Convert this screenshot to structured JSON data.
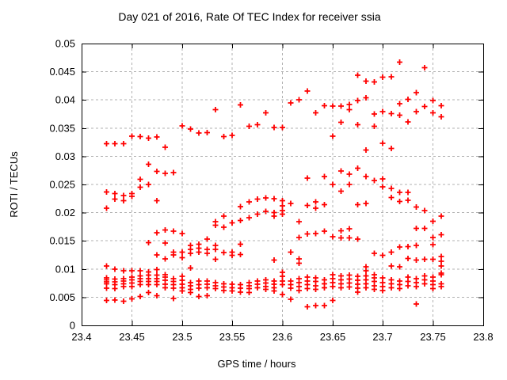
{
  "title": "Day 021 of 2016, Rate Of TEC Index for receiver ssia",
  "colors": {
    "background": "#ffffff",
    "marker": "#ff0000",
    "grid": "#b0b0b0",
    "border": "#000000",
    "text": "#000000"
  },
  "chart_data": {
    "type": "scatter",
    "title": "Day 021 of 2016, Rate Of TEC Index for receiver ssia",
    "xlabel": "GPS time / hours",
    "ylabel": "ROTI / TECUs",
    "xlim": [
      23.4,
      23.8
    ],
    "ylim": [
      0,
      0.05
    ],
    "xticks": [
      23.4,
      23.45,
      23.5,
      23.55,
      23.6,
      23.65,
      23.7,
      23.75,
      23.8
    ],
    "xtick_labels": [
      "23.4",
      "23.45",
      "23.5",
      "23.55",
      "23.6",
      "23.65",
      "23.7",
      "23.75",
      "23.8"
    ],
    "yticks": [
      0,
      0.005,
      0.01,
      0.015,
      0.02,
      0.025,
      0.03,
      0.035,
      0.04,
      0.045,
      0.05
    ],
    "ytick_labels": [
      "0",
      "0.005",
      "0.01",
      "0.015",
      "0.02",
      "0.025",
      "0.03",
      "0.035",
      "0.04",
      "0.045",
      "0.05"
    ],
    "grid": true,
    "legend": "none",
    "marker": {
      "shape": "plus",
      "color": "#ff0000",
      "size": 7
    },
    "sample_interval_hours": 0.008333,
    "series": [
      {
        "name": "ROTI",
        "columns": [
          {
            "t": 23.425,
            "v": [
              0.0322,
              0.0237,
              0.0208,
              0.0105,
              0.0084,
              0.0081,
              0.0077,
              0.0074,
              0.0066,
              0.0044
            ]
          },
          {
            "t": 23.4333,
            "v": [
              0.0322,
              0.0234,
              0.0224,
              0.01,
              0.0082,
              0.0077,
              0.0072,
              0.0065,
              0.0045
            ]
          },
          {
            "t": 23.4417,
            "v": [
              0.0322,
              0.023,
              0.0221,
              0.0097,
              0.0083,
              0.0079,
              0.0074,
              0.0069,
              0.0043
            ]
          },
          {
            "t": 23.45,
            "v": [
              0.0336,
              0.0234,
              0.0229,
              0.0097,
              0.0086,
              0.0081,
              0.0075,
              0.0069,
              0.0047
            ]
          },
          {
            "t": 23.4583,
            "v": [
              0.0335,
              0.0259,
              0.0245,
              0.0097,
              0.0088,
              0.0083,
              0.0078,
              0.0072,
              0.0051
            ]
          },
          {
            "t": 23.4667,
            "v": [
              0.0332,
              0.0286,
              0.025,
              0.0147,
              0.0095,
              0.0089,
              0.0083,
              0.0078,
              0.0072,
              0.0058
            ]
          },
          {
            "t": 23.475,
            "v": [
              0.0334,
              0.0273,
              0.0221,
              0.0164,
              0.0125,
              0.0099,
              0.0089,
              0.0083,
              0.0078,
              0.0072,
              0.0053
            ]
          },
          {
            "t": 23.4833,
            "v": [
              0.0316,
              0.027,
              0.0169,
              0.0146,
              0.0118,
              0.009,
              0.0086,
              0.008,
              0.0073,
              0.0067
            ]
          },
          {
            "t": 23.4917,
            "v": [
              0.0271,
              0.0167,
              0.013,
              0.0125,
              0.0083,
              0.0078,
              0.0072,
              0.0066,
              0.0048
            ]
          },
          {
            "t": 23.5,
            "v": [
              0.0354,
              0.0163,
              0.013,
              0.012,
              0.0087,
              0.008,
              0.0073,
              0.0067,
              0.0061
            ]
          },
          {
            "t": 23.5083,
            "v": [
              0.0348,
              0.0142,
              0.0135,
              0.0128,
              0.0102,
              0.0076,
              0.007,
              0.0064,
              0.0058
            ]
          },
          {
            "t": 23.5167,
            "v": [
              0.0341,
              0.0144,
              0.0137,
              0.013,
              0.0079,
              0.0072,
              0.0066,
              0.0051
            ]
          },
          {
            "t": 23.525,
            "v": [
              0.0342,
              0.0153,
              0.0135,
              0.0128,
              0.0079,
              0.0073,
              0.0067,
              0.0053
            ]
          },
          {
            "t": 23.5333,
            "v": [
              0.0383,
              0.0184,
              0.0178,
              0.0142,
              0.0135,
              0.0117,
              0.0076,
              0.007,
              0.0065
            ]
          },
          {
            "t": 23.5417,
            "v": [
              0.0335,
              0.0194,
              0.0174,
              0.0129,
              0.0074,
              0.0068,
              0.0062
            ]
          },
          {
            "t": 23.55,
            "v": [
              0.0337,
              0.0182,
              0.013,
              0.0124,
              0.0073,
              0.0067,
              0.0061
            ]
          },
          {
            "t": 23.5583,
            "v": [
              0.0391,
              0.0211,
              0.0186,
              0.0144,
              0.0126,
              0.0072,
              0.0066,
              0.0059
            ]
          },
          {
            "t": 23.5667,
            "v": [
              0.0353,
              0.0219,
              0.0191,
              0.0076,
              0.007,
              0.0065,
              0.0058
            ]
          },
          {
            "t": 23.575,
            "v": [
              0.0356,
              0.0224,
              0.0197,
              0.0079,
              0.0073,
              0.0067
            ]
          },
          {
            "t": 23.5833,
            "v": [
              0.0377,
              0.0226,
              0.0202,
              0.0081,
              0.0075,
              0.0069,
              0.0064
            ]
          },
          {
            "t": 23.5917,
            "v": [
              0.0351,
              0.0225,
              0.02,
              0.0194,
              0.0116,
              0.0079,
              0.0073,
              0.0067,
              0.0061
            ]
          },
          {
            "t": 23.6,
            "v": [
              0.0351,
              0.0221,
              0.0212,
              0.0204,
              0.0197,
              0.0094,
              0.0087,
              0.0079,
              0.0072,
              0.0055
            ]
          },
          {
            "t": 23.6083,
            "v": [
              0.0395,
              0.0216,
              0.013,
              0.0079,
              0.0072,
              0.0066,
              0.0046
            ]
          },
          {
            "t": 23.6167,
            "v": [
              0.04,
              0.0184,
              0.0156,
              0.0118,
              0.011,
              0.0083,
              0.0076,
              0.0069,
              0.0062
            ]
          },
          {
            "t": 23.625,
            "v": [
              0.0416,
              0.0261,
              0.0213,
              0.0162,
              0.0086,
              0.0079,
              0.0072,
              0.0065,
              0.0033
            ]
          },
          {
            "t": 23.6333,
            "v": [
              0.0377,
              0.0219,
              0.0208,
              0.0163,
              0.0084,
              0.0078,
              0.007,
              0.0064,
              0.0035
            ]
          },
          {
            "t": 23.6417,
            "v": [
              0.039,
              0.0264,
              0.0214,
              0.0167,
              0.0081,
              0.0074,
              0.0067,
              0.0035
            ]
          },
          {
            "t": 23.65,
            "v": [
              0.0389,
              0.0336,
              0.025,
              0.0157,
              0.009,
              0.0083,
              0.0076,
              0.0069,
              0.0044
            ]
          },
          {
            "t": 23.6583,
            "v": [
              0.0389,
              0.036,
              0.0274,
              0.0238,
              0.0168,
              0.0155,
              0.0088,
              0.0081,
              0.0074,
              0.0067
            ]
          },
          {
            "t": 23.6667,
            "v": [
              0.0392,
              0.0383,
              0.0268,
              0.025,
              0.0171,
              0.0155,
              0.0089,
              0.0082,
              0.0075,
              0.0068
            ]
          },
          {
            "t": 23.675,
            "v": [
              0.0444,
              0.0399,
              0.0356,
              0.0279,
              0.0214,
              0.0153,
              0.0087,
              0.008,
              0.0073,
              0.0066,
              0.0059
            ]
          },
          {
            "t": 23.6833,
            "v": [
              0.0433,
              0.0404,
              0.0311,
              0.0264,
              0.0216,
              0.0104,
              0.0097,
              0.0088,
              0.0081,
              0.0074,
              0.0067
            ]
          },
          {
            "t": 23.6917,
            "v": [
              0.0432,
              0.0375,
              0.0353,
              0.0257,
              0.0128,
              0.009,
              0.0084,
              0.0078,
              0.007,
              0.0064
            ]
          },
          {
            "t": 23.7,
            "v": [
              0.044,
              0.0379,
              0.0323,
              0.026,
              0.0246,
              0.0124,
              0.0084,
              0.0076,
              0.0069,
              0.0062
            ]
          },
          {
            "t": 23.7083,
            "v": [
              0.0441,
              0.0376,
              0.0314,
              0.0243,
              0.0227,
              0.013,
              0.0105,
              0.0081,
              0.0074,
              0.0067
            ]
          },
          {
            "t": 23.7167,
            "v": [
              0.0467,
              0.0393,
              0.0373,
              0.0236,
              0.022,
              0.0139,
              0.0104,
              0.0079,
              0.0072,
              0.0065
            ]
          },
          {
            "t": 23.725,
            "v": [
              0.0401,
              0.0361,
              0.0236,
              0.0222,
              0.014,
              0.0119,
              0.0086,
              0.0078,
              0.007
            ]
          },
          {
            "t": 23.7333,
            "v": [
              0.0413,
              0.0379,
              0.021,
              0.0172,
              0.0142,
              0.0116,
              0.0083,
              0.0076,
              0.0069,
              0.0038
            ]
          },
          {
            "t": 23.7417,
            "v": [
              0.0457,
              0.0388,
              0.0204,
              0.0172,
              0.0117,
              0.0088,
              0.0081,
              0.0074
            ]
          },
          {
            "t": 23.75,
            "v": [
              0.0399,
              0.0377,
              0.0185,
              0.0156,
              0.0143,
              0.0117,
              0.0086,
              0.0079,
              0.0072,
              0.0065
            ]
          },
          {
            "t": 23.7583,
            "v": [
              0.039,
              0.037,
              0.0194,
              0.0161,
              0.0122,
              0.0114,
              0.0105,
              0.0093,
              0.009,
              0.0074,
              0.0069
            ]
          }
        ]
      }
    ]
  }
}
